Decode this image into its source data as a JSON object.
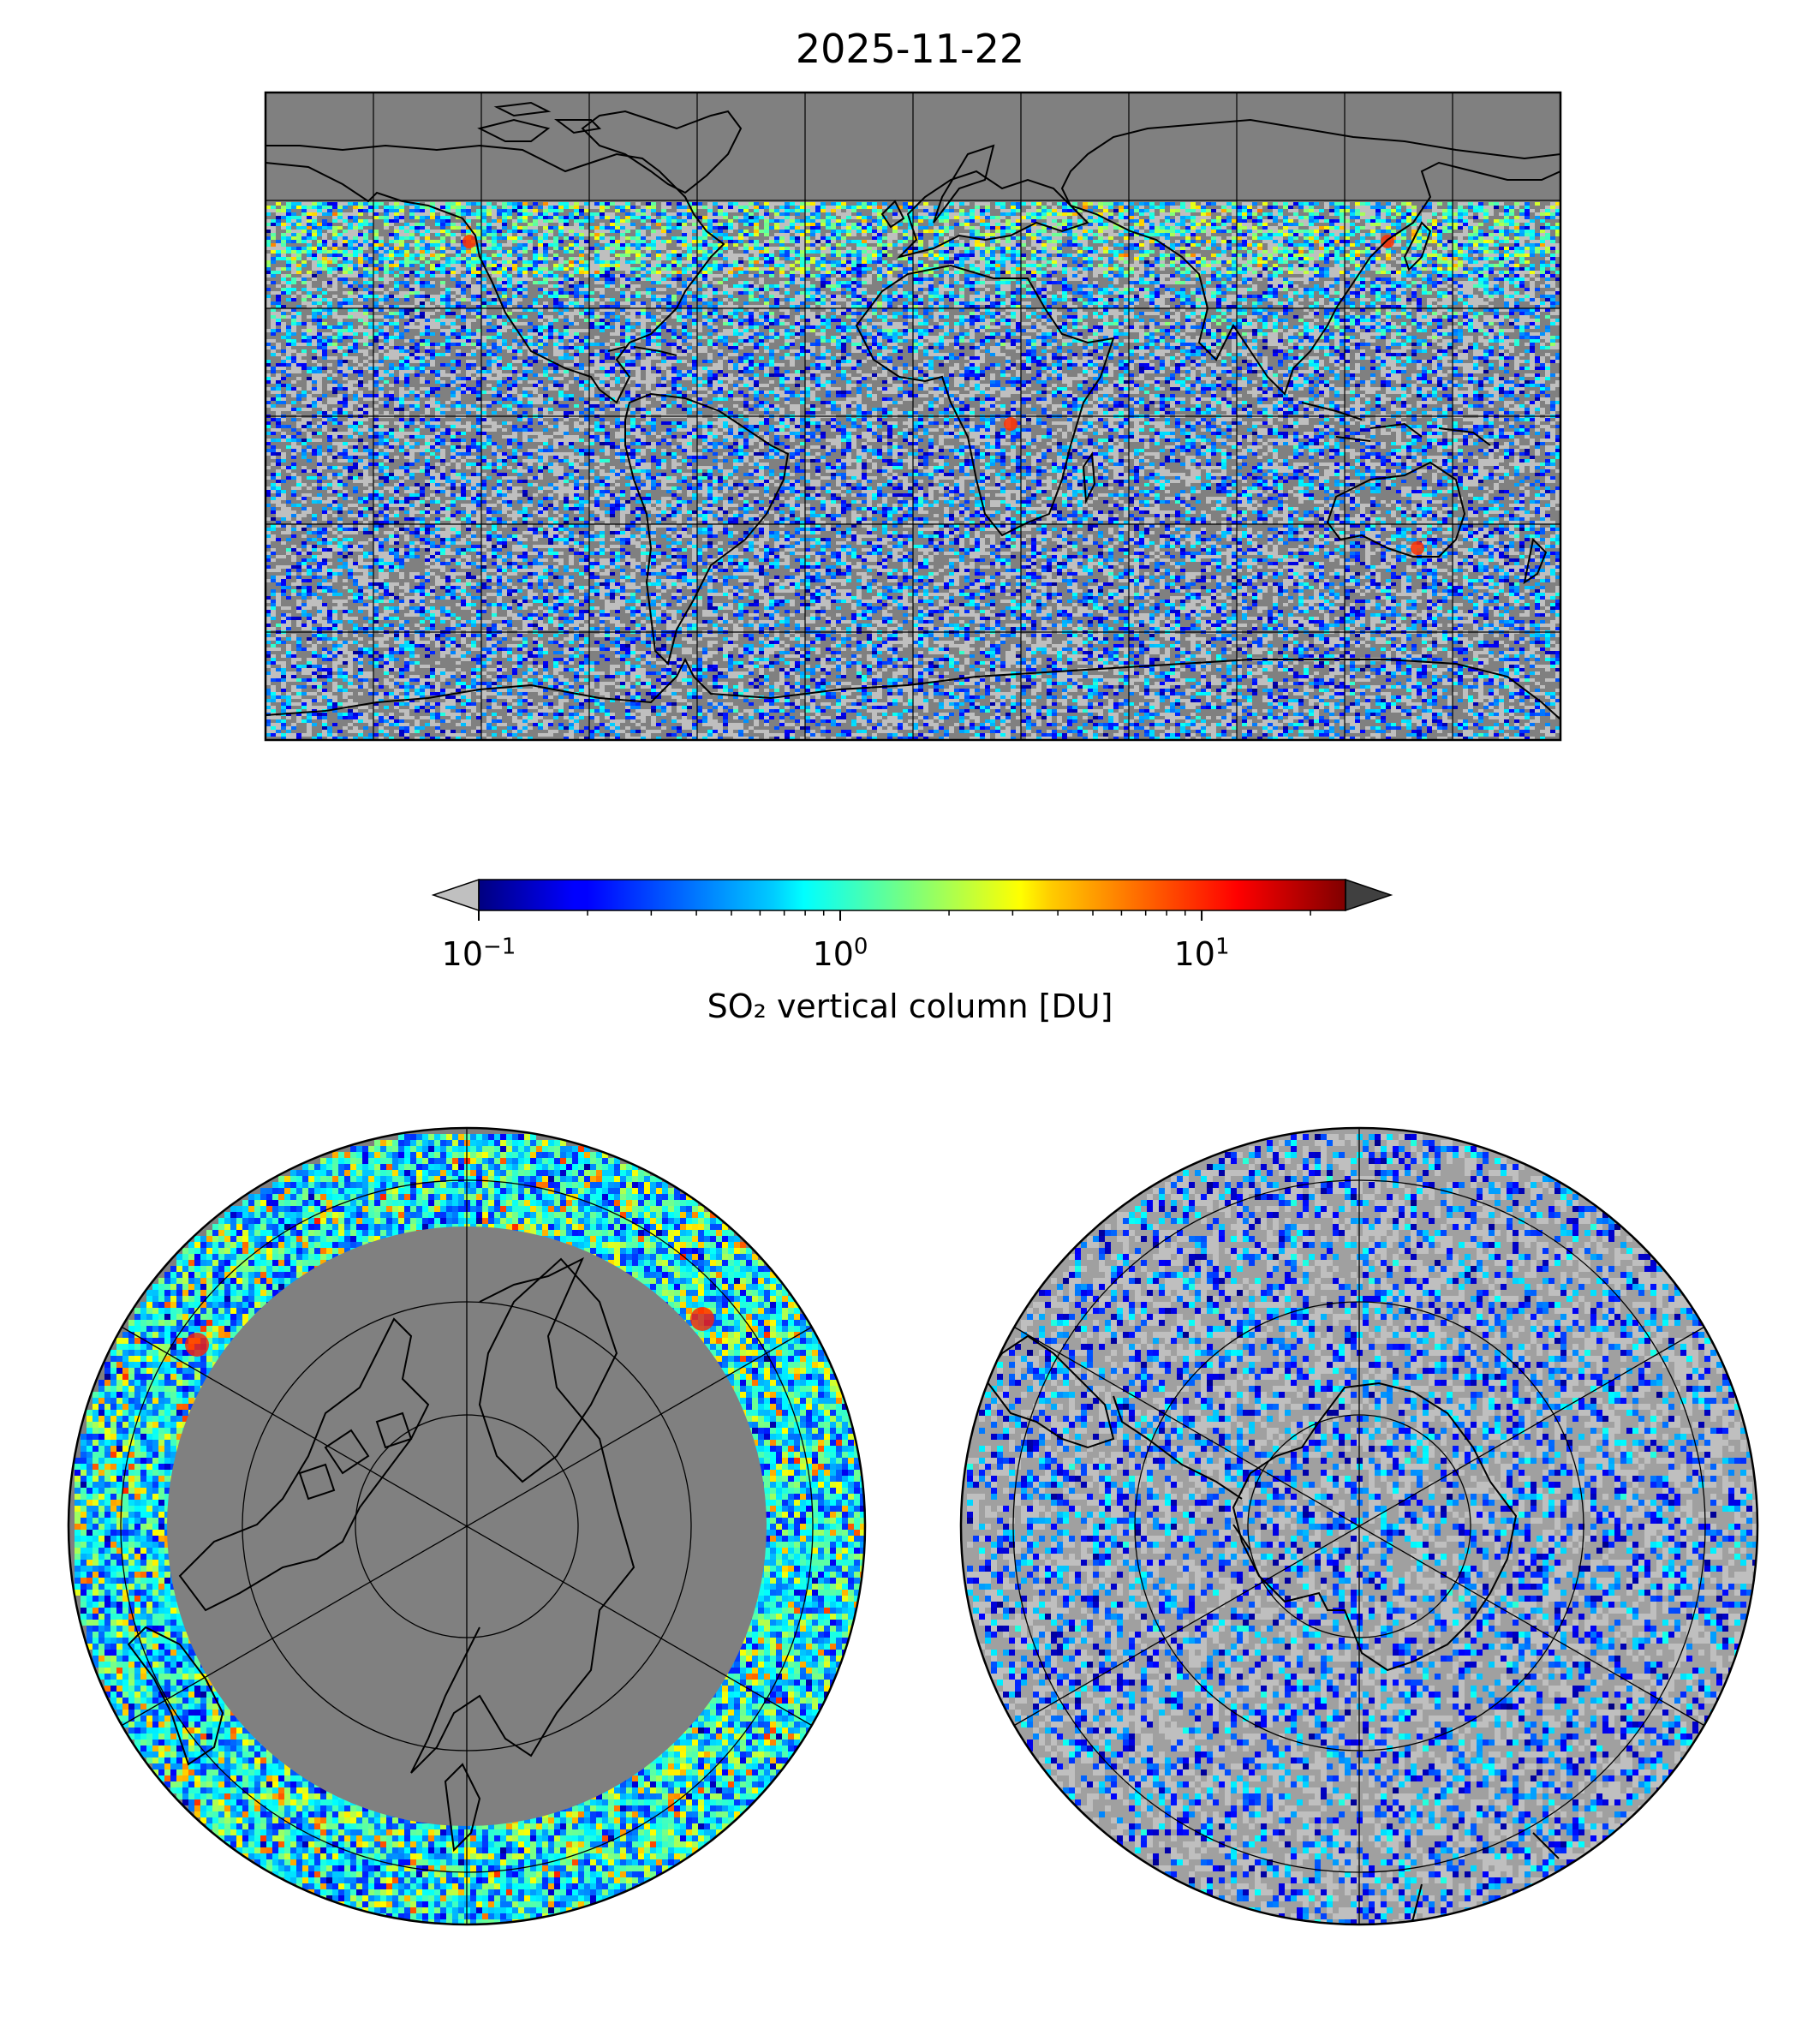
{
  "title": "2025-11-22",
  "colorbar": {
    "label": "SO₂ vertical column [DU]",
    "scale": "log",
    "range": [
      0.1,
      25
    ],
    "extend": "both",
    "under_color": "#c0c0c0",
    "over_color": "#404040",
    "colormap": "jet",
    "ticks": [
      {
        "base": "10",
        "exp": "−1",
        "value": 0.1
      },
      {
        "base": "10",
        "exp": "0",
        "value": 1
      },
      {
        "base": "10",
        "exp": "1",
        "value": 10
      }
    ]
  },
  "maps": [
    {
      "name": "global",
      "projection": "equirectangular",
      "background": "#808080"
    },
    {
      "name": "north-polar",
      "projection": "orthographic-north",
      "background": "#808080"
    },
    {
      "name": "south-polar",
      "projection": "orthographic-south",
      "background": "#808080"
    }
  ],
  "colors": {
    "no_data": "#808080",
    "below_range": "#c0c0c0",
    "coastline": "#000000",
    "gridline": "#000000"
  }
}
